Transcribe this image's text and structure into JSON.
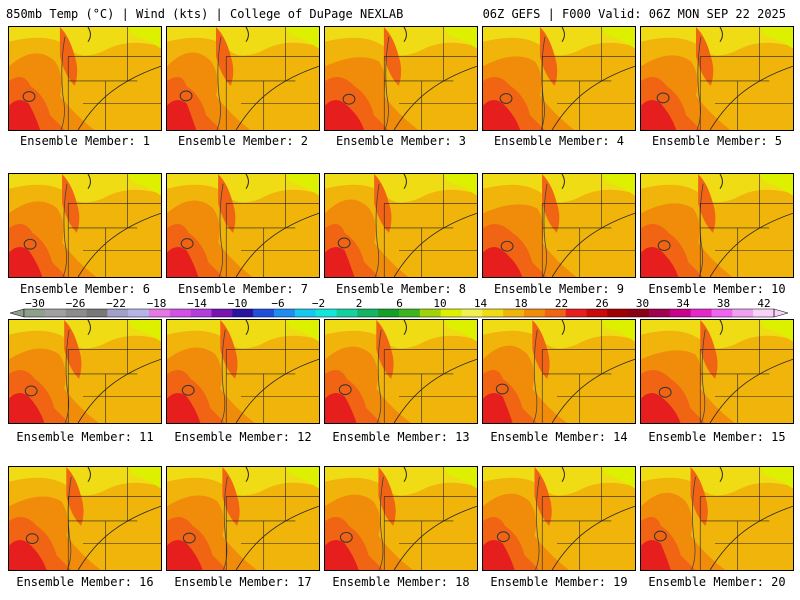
{
  "header": {
    "left_title": "850mb Temp (°C) | Wind (kts) | College of DuPage NEXLAB",
    "right_title": "06Z GEFS | F000 Valid: 06Z MON SEP 22 2025"
  },
  "panels": [
    {
      "label": "Ensemble Member: 1"
    },
    {
      "label": "Ensemble Member: 2"
    },
    {
      "label": "Ensemble Member: 3"
    },
    {
      "label": "Ensemble Member: 4"
    },
    {
      "label": "Ensemble Member: 5"
    },
    {
      "label": "Ensemble Member: 6"
    },
    {
      "label": "Ensemble Member: 7"
    },
    {
      "label": "Ensemble Member: 8"
    },
    {
      "label": "Ensemble Member: 9"
    },
    {
      "label": "Ensemble Member: 10"
    },
    {
      "label": "Ensemble Member: 11"
    },
    {
      "label": "Ensemble Member: 12"
    },
    {
      "label": "Ensemble Member: 13"
    },
    {
      "label": "Ensemble Member: 14"
    },
    {
      "label": "Ensemble Member: 15"
    },
    {
      "label": "Ensemble Member: 16"
    },
    {
      "label": "Ensemble Member: 17"
    },
    {
      "label": "Ensemble Member: 18"
    },
    {
      "label": "Ensemble Member: 19"
    },
    {
      "label": "Ensemble Member: 20"
    }
  ],
  "colorbar": {
    "labels": [
      "−30",
      "−26",
      "−22",
      "−18",
      "−14",
      "−10",
      "−6",
      "−2",
      "2",
      "6",
      "10",
      "14",
      "18",
      "22",
      "26",
      "30",
      "34",
      "38",
      "42"
    ],
    "colors": [
      "#8ca08c",
      "#a0a0a0",
      "#8c8c8c",
      "#787878",
      "#a0a0c8",
      "#b4b4e6",
      "#e678e6",
      "#d250e6",
      "#b43cdc",
      "#7814b4",
      "#2814a0",
      "#1e50dc",
      "#1e8cf0",
      "#14c8f0",
      "#14e6dc",
      "#14d2a0",
      "#14b464",
      "#14a028",
      "#3cb41e",
      "#a0d20a",
      "#dcf000",
      "#f0f050",
      "#f0dc14",
      "#f0b40a",
      "#f08c0a",
      "#f06414",
      "#e61e1e",
      "#c80a0a",
      "#a00000",
      "#8c0014",
      "#a00050",
      "#c8008c",
      "#e628c8",
      "#f064f0",
      "#f0a0f0",
      "#f8d2f8"
    ]
  }
}
